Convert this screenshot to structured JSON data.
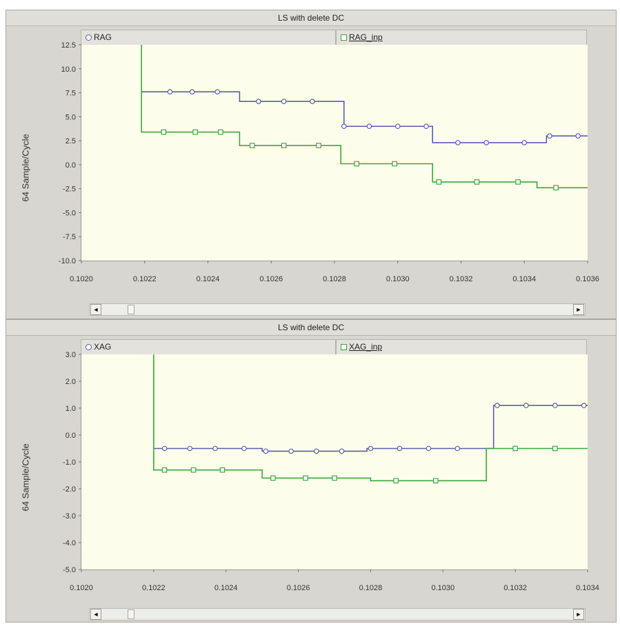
{
  "panels": [
    {
      "title": "LS with delete DC",
      "ylabel": "64 Sample/Cycle",
      "legend": {
        "series1": "RAG",
        "series2": "RAG_inp"
      }
    },
    {
      "title": "LS with delete DC",
      "ylabel": "64 Sample/Cycle",
      "legend": {
        "series1": "XAG",
        "series2": "XAG_inp"
      }
    }
  ],
  "scrollbar": {
    "left_arrow": "◄",
    "right_arrow": "►"
  },
  "colors": {
    "series_blue": "#5a5ab8",
    "series_green": "#3aa83a",
    "plot_bg": "#fdfdeb"
  },
  "chart_data": [
    {
      "type": "line",
      "title": "LS with delete DC",
      "ylabel": "64 Sample/Cycle",
      "xlabel": "",
      "xlim": [
        0.102,
        0.1036
      ],
      "ylim": [
        -10.0,
        12.5
      ],
      "xticks": [
        "0.1020",
        "0.1022",
        "0.1024",
        "0.1026",
        "0.1028",
        "0.1030",
        "0.1032",
        "0.1034",
        "0.1036"
      ],
      "yticks": [
        "12.5",
        "10.0",
        "7.5",
        "5.0",
        "2.5",
        "0.0",
        "-2.5",
        "-5.0",
        "-7.5",
        "-10.0"
      ],
      "series": [
        {
          "name": "RAG",
          "marker": "circle",
          "steps": [
            [
              0.10219,
              7.6
            ],
            [
              0.1025,
              6.6
            ],
            [
              0.10283,
              4.0
            ],
            [
              0.10311,
              2.3
            ],
            [
              0.10347,
              3.0
            ],
            [
              0.1036,
              3.0
            ]
          ],
          "markers": [
            [
              0.10228,
              7.6
            ],
            [
              0.10235,
              7.6
            ],
            [
              0.10243,
              7.6
            ],
            [
              0.10256,
              6.6
            ],
            [
              0.10264,
              6.6
            ],
            [
              0.10273,
              6.6
            ],
            [
              0.10283,
              4.0
            ],
            [
              0.10291,
              4.0
            ],
            [
              0.103,
              4.0
            ],
            [
              0.10309,
              4.0
            ],
            [
              0.10319,
              2.3
            ],
            [
              0.10328,
              2.3
            ],
            [
              0.1034,
              2.3
            ],
            [
              0.10348,
              3.0
            ],
            [
              0.10357,
              3.0
            ]
          ]
        },
        {
          "name": "RAG_inp",
          "marker": "square",
          "steps": [
            [
              0.10219,
              3.4
            ],
            [
              0.1025,
              2.0
            ],
            [
              0.10282,
              0.1
            ],
            [
              0.10311,
              -1.8
            ],
            [
              0.10344,
              -2.4
            ],
            [
              0.1036,
              -2.4
            ]
          ],
          "markers": [
            [
              0.10226,
              3.4
            ],
            [
              0.10236,
              3.4
            ],
            [
              0.10244,
              3.4
            ],
            [
              0.10254,
              2.0
            ],
            [
              0.10264,
              2.0
            ],
            [
              0.10275,
              2.0
            ],
            [
              0.10287,
              0.1
            ],
            [
              0.10299,
              0.1
            ],
            [
              0.10313,
              -1.8
            ],
            [
              0.10325,
              -1.8
            ],
            [
              0.10338,
              -1.8
            ],
            [
              0.1035,
              -2.4
            ]
          ]
        }
      ]
    },
    {
      "type": "line",
      "title": "LS with delete DC",
      "ylabel": "64 Sample/Cycle",
      "xlabel": "",
      "xlim": [
        0.102,
        0.1034
      ],
      "ylim": [
        -5.0,
        3.0
      ],
      "xticks": [
        "0.1020",
        "0.1022",
        "0.1024",
        "0.1026",
        "0.1028",
        "0.1030",
        "0.1032",
        "0.1034"
      ],
      "yticks": [
        "3.0",
        "2.0",
        "1.0",
        "0.0",
        "-1.0",
        "-2.0",
        "-3.0",
        "-4.0",
        "-5.0"
      ],
      "series": [
        {
          "name": "XAG",
          "marker": "circle",
          "steps": [
            [
              0.1022,
              -0.5
            ],
            [
              0.1025,
              -0.6
            ],
            [
              0.10279,
              -0.5
            ],
            [
              0.10314,
              1.1
            ],
            [
              0.1034,
              1.1
            ]
          ],
          "markers": [
            [
              0.10223,
              -0.5
            ],
            [
              0.1023,
              -0.5
            ],
            [
              0.10237,
              -0.5
            ],
            [
              0.10245,
              -0.5
            ],
            [
              0.10251,
              -0.6
            ],
            [
              0.10258,
              -0.6
            ],
            [
              0.10265,
              -0.6
            ],
            [
              0.10272,
              -0.6
            ],
            [
              0.1028,
              -0.5
            ],
            [
              0.10288,
              -0.5
            ],
            [
              0.10296,
              -0.5
            ],
            [
              0.10304,
              -0.5
            ],
            [
              0.10315,
              1.1
            ],
            [
              0.10323,
              1.1
            ],
            [
              0.10331,
              1.1
            ],
            [
              0.10339,
              1.1
            ]
          ]
        },
        {
          "name": "XAG_inp",
          "marker": "square",
          "steps": [
            [
              0.1022,
              -1.3
            ],
            [
              0.1025,
              -1.6
            ],
            [
              0.1028,
              -1.7
            ],
            [
              0.10312,
              -0.5
            ],
            [
              0.1034,
              -0.5
            ]
          ],
          "markers": [
            [
              0.10223,
              -1.3
            ],
            [
              0.10231,
              -1.3
            ],
            [
              0.10239,
              -1.3
            ],
            [
              0.10253,
              -1.6
            ],
            [
              0.10262,
              -1.6
            ],
            [
              0.1027,
              -1.6
            ],
            [
              0.10287,
              -1.7
            ],
            [
              0.10298,
              -1.7
            ],
            [
              0.1032,
              -0.5
            ],
            [
              0.10331,
              -0.5
            ]
          ]
        }
      ]
    }
  ]
}
